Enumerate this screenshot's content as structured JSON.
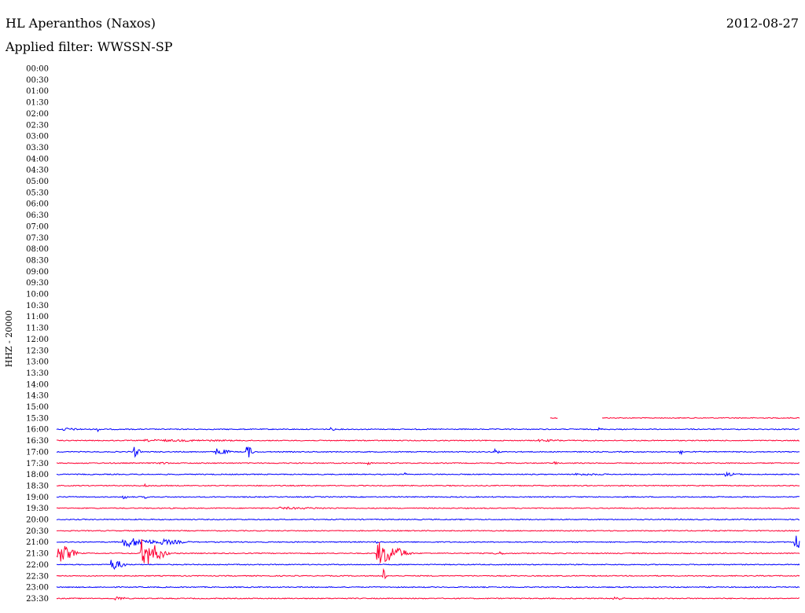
{
  "header": {
    "station": "HL Aperanthos (Naxos)",
    "date": "2012-08-27",
    "filter": "Applied filter: WWSSN-SP"
  },
  "colors": {
    "blue": "#0000ff",
    "red": "#ff0033",
    "text": "#000000",
    "background": "#ffffff"
  },
  "chart_data": {
    "type": "line",
    "title": "HL Aperanthos (Naxos)",
    "subtitle": "Applied filter: WWSSN-SP",
    "ylabel": "HHZ - 20000",
    "xlabel": "",
    "grid": false,
    "legend": "none",
    "trace_colors_alternate": [
      "blue",
      "red"
    ],
    "rows": [
      {
        "time": "00:00",
        "data": false
      },
      {
        "time": "00:30",
        "data": false
      },
      {
        "time": "01:00",
        "data": false
      },
      {
        "time": "01:30",
        "data": false
      },
      {
        "time": "02:00",
        "data": false
      },
      {
        "time": "02:30",
        "data": false
      },
      {
        "time": "03:00",
        "data": false
      },
      {
        "time": "03:30",
        "data": false
      },
      {
        "time": "04:00",
        "data": false
      },
      {
        "time": "04:30",
        "data": false
      },
      {
        "time": "05:00",
        "data": false
      },
      {
        "time": "05:30",
        "data": false
      },
      {
        "time": "06:00",
        "data": false
      },
      {
        "time": "06:30",
        "data": false
      },
      {
        "time": "07:00",
        "data": false
      },
      {
        "time": "07:30",
        "data": false
      },
      {
        "time": "08:00",
        "data": false
      },
      {
        "time": "08:30",
        "data": false
      },
      {
        "time": "09:00",
        "data": false
      },
      {
        "time": "09:30",
        "data": false
      },
      {
        "time": "10:00",
        "data": false
      },
      {
        "time": "10:30",
        "data": false
      },
      {
        "time": "11:00",
        "data": false
      },
      {
        "time": "11:30",
        "data": false
      },
      {
        "time": "12:00",
        "data": false
      },
      {
        "time": "12:30",
        "data": false
      },
      {
        "time": "13:00",
        "data": false
      },
      {
        "time": "13:30",
        "data": false
      },
      {
        "time": "14:00",
        "data": false
      },
      {
        "time": "14:30",
        "data": false
      },
      {
        "time": "15:00",
        "data": false
      },
      {
        "time": "15:30",
        "data": true,
        "color": "red",
        "segments": [
          [
            0.665,
            0.675
          ],
          [
            0.735,
            1.0
          ]
        ],
        "events": []
      },
      {
        "time": "16:00",
        "data": true,
        "color": "blue",
        "events": [
          {
            "at": 0.01,
            "amp": 2,
            "width": 0.04
          },
          {
            "at": 0.055,
            "amp": 3,
            "width": 0.01
          },
          {
            "at": 0.37,
            "amp": 2,
            "width": 0.01
          },
          {
            "at": 0.73,
            "amp": 2,
            "width": 0.01
          }
        ]
      },
      {
        "time": "16:30",
        "data": true,
        "color": "red",
        "events": [
          {
            "at": 0.12,
            "amp": 1.5,
            "width": 0.25
          },
          {
            "at": 0.65,
            "amp": 1.5,
            "width": 0.08
          }
        ]
      },
      {
        "time": "17:00",
        "data": true,
        "color": "blue",
        "events": [
          {
            "at": 0.105,
            "amp": 7,
            "width": 0.01
          },
          {
            "at": 0.215,
            "amp": 5,
            "width": 0.025
          },
          {
            "at": 0.257,
            "amp": 9,
            "width": 0.01
          },
          {
            "at": 0.59,
            "amp": 4,
            "width": 0.01
          },
          {
            "at": 0.84,
            "amp": 4,
            "width": 0.01
          }
        ]
      },
      {
        "time": "17:30",
        "data": true,
        "color": "red",
        "events": [
          {
            "at": 0.14,
            "amp": 2,
            "width": 0.02
          },
          {
            "at": 0.42,
            "amp": 2,
            "width": 0.01
          },
          {
            "at": 0.67,
            "amp": 2,
            "width": 0.01
          }
        ]
      },
      {
        "time": "18:00",
        "data": true,
        "color": "blue",
        "events": [
          {
            "at": 0.47,
            "amp": 2,
            "width": 0.01
          },
          {
            "at": 0.7,
            "amp": 1.5,
            "width": 0.08
          },
          {
            "at": 0.9,
            "amp": 2.5,
            "width": 0.03
          }
        ]
      },
      {
        "time": "18:30",
        "data": true,
        "color": "red",
        "events": [
          {
            "at": 0.12,
            "amp": 2,
            "width": 0.01
          }
        ]
      },
      {
        "time": "19:00",
        "data": true,
        "color": "blue",
        "events": [
          {
            "at": 0.09,
            "amp": 3,
            "width": 0.01
          },
          {
            "at": 0.12,
            "amp": 2,
            "width": 0.005
          }
        ]
      },
      {
        "time": "19:30",
        "data": true,
        "color": "red",
        "events": [
          {
            "at": 0.3,
            "amp": 1.5,
            "width": 0.15
          }
        ]
      },
      {
        "time": "20:00",
        "data": true,
        "color": "blue",
        "events": []
      },
      {
        "time": "20:30",
        "data": true,
        "color": "red",
        "events": []
      },
      {
        "time": "21:00",
        "data": true,
        "color": "blue",
        "events": [
          {
            "at": 0.09,
            "amp": 7,
            "width": 0.06
          },
          {
            "at": 0.14,
            "amp": 4,
            "width": 0.05
          },
          {
            "at": 0.43,
            "amp": 2,
            "width": 0.01
          },
          {
            "at": 0.995,
            "amp": 13,
            "width": 0.01
          }
        ]
      },
      {
        "time": "21:30",
        "data": true,
        "color": "red",
        "events": [
          {
            "at": 0.002,
            "amp": 13,
            "width": 0.03
          },
          {
            "at": 0.115,
            "amp": 18,
            "width": 0.04
          },
          {
            "at": 0.433,
            "amp": 15,
            "width": 0.05
          },
          {
            "at": 0.59,
            "amp": 3,
            "width": 0.02
          }
        ]
      },
      {
        "time": "22:00",
        "data": true,
        "color": "blue",
        "events": [
          {
            "at": 0.075,
            "amp": 7,
            "width": 0.025
          }
        ]
      },
      {
        "time": "22:30",
        "data": true,
        "color": "red",
        "events": [
          {
            "at": 0.44,
            "amp": 9,
            "width": 0.005
          }
        ]
      },
      {
        "time": "23:00",
        "data": true,
        "color": "blue",
        "events": []
      },
      {
        "time": "23:30",
        "data": true,
        "color": "red",
        "events": [
          {
            "at": 0.08,
            "amp": 3,
            "width": 0.02
          },
          {
            "at": 0.75,
            "amp": 3,
            "width": 0.02
          }
        ]
      }
    ]
  }
}
